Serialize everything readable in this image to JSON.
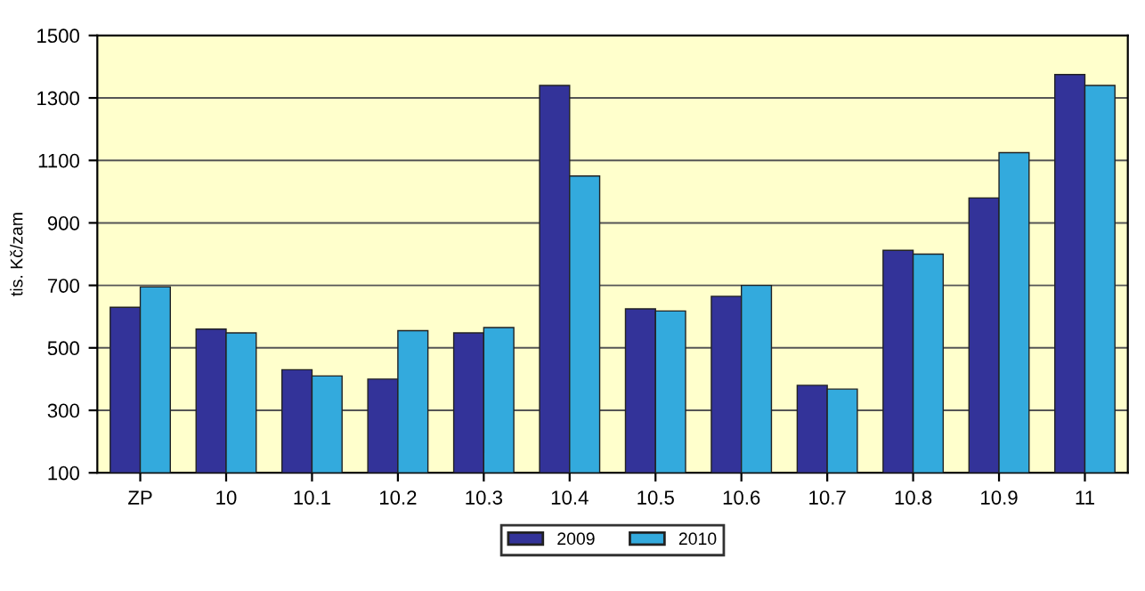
{
  "chart_data": {
    "type": "bar",
    "ylabel": "tis. Kč/zam",
    "categories": [
      "ZP",
      "10",
      "10.1",
      "10.2",
      "10.3",
      "10.4",
      "10.5",
      "10.6",
      "10.7",
      "10.8",
      "10.9",
      "11"
    ],
    "series": [
      {
        "name": "2009",
        "color": "#333399",
        "values": [
          630,
          560,
          430,
          400,
          548,
          1340,
          625,
          665,
          380,
          812,
          980,
          1375
        ]
      },
      {
        "name": "2010",
        "color": "#33aadd",
        "values": [
          695,
          548,
          410,
          555,
          565,
          1050,
          618,
          700,
          368,
          800,
          1125,
          1340
        ]
      }
    ],
    "ylim": [
      100,
      1500
    ],
    "yticks": [
      100,
      300,
      500,
      700,
      900,
      1100,
      1300,
      1500
    ],
    "grid": "y",
    "legend": "bottom"
  }
}
